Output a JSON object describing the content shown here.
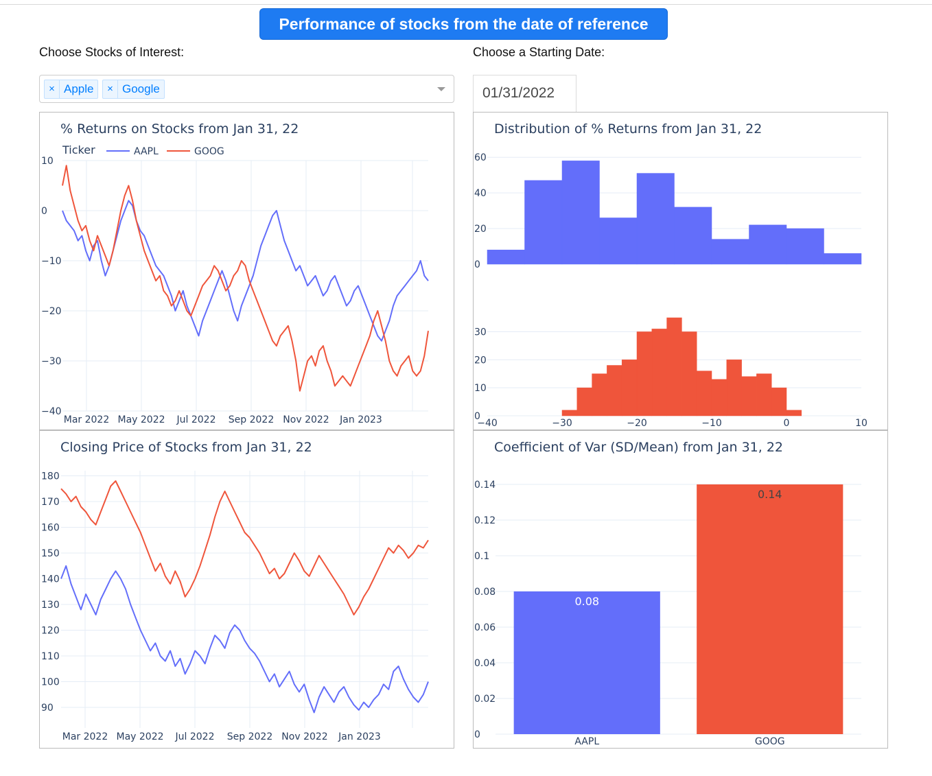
{
  "header": {
    "title": "Performance of stocks from the date of reference"
  },
  "controls": {
    "stocks_label": "Choose Stocks of Interest:",
    "date_label": "Choose a Starting Date:",
    "selected_stocks": [
      {
        "remove": "×",
        "label": "Apple"
      },
      {
        "remove": "×",
        "label": "Google"
      }
    ],
    "date_value": "01/31/2022"
  },
  "colors": {
    "aapl": "#636efa",
    "goog": "#ef553b",
    "grid": "#e5ecf6",
    "axis_text": "#2a3f5f",
    "accent": "#1e7bf2"
  },
  "chart_data": [
    {
      "id": "returns",
      "type": "line",
      "title": "% Returns on Stocks from Jan 31, 22",
      "legend_title": "Ticker",
      "legend_position": "top-left",
      "x_ticks": [
        "Mar 2022",
        "May 2022",
        "Jul 2022",
        "Sep 2022",
        "Nov 2022",
        "Jan 2023"
      ],
      "y_ticks": [
        10,
        0,
        -10,
        -20,
        -30,
        -40
      ],
      "y_tick_labels": [
        "10",
        "0",
        "−10",
        "−20",
        "−30",
        "−40"
      ],
      "ylim": [
        -40,
        10
      ],
      "series": [
        {
          "name": "AAPL",
          "values": [
            0,
            -2,
            -3,
            -4,
            -6,
            -5,
            -8,
            -10,
            -7,
            -6,
            -10,
            -13,
            -11,
            -8,
            -5,
            -2,
            0,
            2,
            1,
            -2,
            -4,
            -5,
            -7,
            -9,
            -11,
            -12,
            -13,
            -15,
            -17,
            -20,
            -18,
            -16,
            -19,
            -21,
            -23,
            -25,
            -22,
            -20,
            -18,
            -16,
            -14,
            -12,
            -14,
            -17,
            -20,
            -22,
            -19,
            -17,
            -15,
            -13,
            -10,
            -7,
            -5,
            -3,
            -1,
            0,
            -3,
            -6,
            -8,
            -10,
            -12,
            -11,
            -13,
            -15,
            -14,
            -13,
            -15,
            -17,
            -16,
            -14,
            -13,
            -15,
            -17,
            -19,
            -18,
            -16,
            -15,
            -17,
            -19,
            -21,
            -23,
            -25,
            -26,
            -24,
            -22,
            -19,
            -17,
            -16,
            -15,
            -14,
            -13,
            -12,
            -10,
            -13,
            -14
          ]
        },
        {
          "name": "GOOG",
          "values": [
            5,
            9,
            4,
            1,
            -2,
            -4,
            -3,
            -6,
            -8,
            -5,
            -7,
            -9,
            -11,
            -8,
            -4,
            0,
            3,
            5,
            2,
            -2,
            -5,
            -8,
            -10,
            -12,
            -14,
            -13,
            -16,
            -17,
            -19,
            -18,
            -16,
            -18,
            -20,
            -21,
            -19,
            -17,
            -15,
            -14,
            -13,
            -11,
            -12,
            -14,
            -16,
            -15,
            -13,
            -12,
            -10,
            -11,
            -14,
            -16,
            -18,
            -20,
            -22,
            -24,
            -26,
            -27,
            -25,
            -24,
            -23,
            -26,
            -30,
            -36,
            -33,
            -30,
            -29,
            -31,
            -28,
            -27,
            -30,
            -32,
            -35,
            -34,
            -33,
            -34,
            -35,
            -33,
            -31,
            -29,
            -27,
            -25,
            -22,
            -20,
            -23,
            -26,
            -30,
            -32,
            -33,
            -31,
            -30,
            -29,
            -32,
            -33,
            -32,
            -29,
            -24
          ]
        }
      ]
    },
    {
      "id": "distribution",
      "type": "bar",
      "subtype": "histogram",
      "title": "Distribution of % Returns from Jan 31, 22",
      "x_ticks": [
        -40,
        -30,
        -20,
        -10,
        0,
        10
      ],
      "x_tick_labels": [
        "−40",
        "−30",
        "−20",
        "−10",
        "0",
        "10"
      ],
      "xlim": [
        -40,
        10
      ],
      "series": [
        {
          "name": "AAPL",
          "bin_edges": [
            -40,
            -35,
            -30,
            -25,
            -20,
            -15,
            -10,
            -5,
            0,
            5,
            10
          ],
          "counts": [
            8,
            47,
            58,
            26,
            51,
            32,
            14,
            22,
            20,
            6
          ],
          "y_ticks": [
            0,
            20,
            40,
            60
          ],
          "ylim": [
            0,
            62
          ]
        },
        {
          "name": "GOOG",
          "bin_edges": [
            -30,
            -28,
            -26,
            -24,
            -22,
            -20,
            -18,
            -16,
            -14,
            -12,
            -10,
            -8,
            -6,
            -4,
            -2,
            0,
            2,
            4
          ],
          "counts": [
            2,
            10,
            15,
            18,
            20,
            30,
            31,
            35,
            30,
            16,
            13,
            20,
            14,
            15,
            10,
            2,
            0
          ],
          "y_ticks": [
            0,
            10,
            20,
            30
          ],
          "ylim": [
            0,
            36
          ]
        }
      ]
    },
    {
      "id": "closing",
      "type": "line",
      "title": "Closing Price of Stocks from Jan 31, 22",
      "x_ticks": [
        "Mar 2022",
        "May 2022",
        "Jul 2022",
        "Sep 2022",
        "Nov 2022",
        "Jan 2023"
      ],
      "y_ticks": [
        90,
        100,
        110,
        120,
        130,
        140,
        150,
        160,
        170,
        180
      ],
      "ylim": [
        82,
        182
      ],
      "series": [
        {
          "name": "AAPL",
          "values": [
            140,
            145,
            138,
            133,
            128,
            134,
            130,
            126,
            132,
            136,
            140,
            143,
            140,
            136,
            130,
            125,
            120,
            116,
            112,
            115,
            110,
            108,
            112,
            106,
            109,
            103,
            107,
            112,
            110,
            107,
            113,
            118,
            116,
            113,
            119,
            122,
            120,
            116,
            113,
            111,
            108,
            104,
            100,
            103,
            98,
            101,
            104,
            99,
            96,
            99,
            93,
            88,
            94,
            98,
            95,
            92,
            96,
            98,
            94,
            91,
            89,
            92,
            90,
            93,
            95,
            99,
            97,
            104,
            106,
            101,
            97,
            94,
            92,
            95,
            100
          ]
        },
        {
          "name": "GOOG",
          "values": [
            175,
            173,
            170,
            172,
            168,
            166,
            163,
            161,
            166,
            171,
            176,
            178,
            174,
            170,
            166,
            162,
            158,
            153,
            148,
            143,
            146,
            141,
            138,
            143,
            139,
            133,
            136,
            140,
            145,
            151,
            157,
            164,
            170,
            174,
            170,
            166,
            162,
            158,
            156,
            153,
            150,
            146,
            142,
            144,
            140,
            142,
            146,
            150,
            147,
            143,
            141,
            145,
            149,
            146,
            143,
            140,
            137,
            134,
            130,
            126,
            129,
            133,
            136,
            140,
            144,
            148,
            152,
            150,
            153,
            151,
            148,
            150,
            153,
            152,
            155
          ]
        }
      ]
    },
    {
      "id": "cov",
      "type": "bar",
      "title": "Coefficient of Var (SD/Mean) from Jan 31, 22",
      "categories": [
        "AAPL",
        "GOOG"
      ],
      "values": [
        0.08,
        0.14
      ],
      "data_labels": [
        "0.08",
        "0.14"
      ],
      "y_ticks": [
        0,
        0.02,
        0.04,
        0.06,
        0.08,
        0.1,
        0.12,
        0.14
      ],
      "y_tick_labels": [
        "0",
        "0.02",
        "0.04",
        "0.06",
        "0.08",
        "0.1",
        "0.12",
        "0.14"
      ],
      "ylim": [
        0,
        0.14
      ]
    }
  ]
}
